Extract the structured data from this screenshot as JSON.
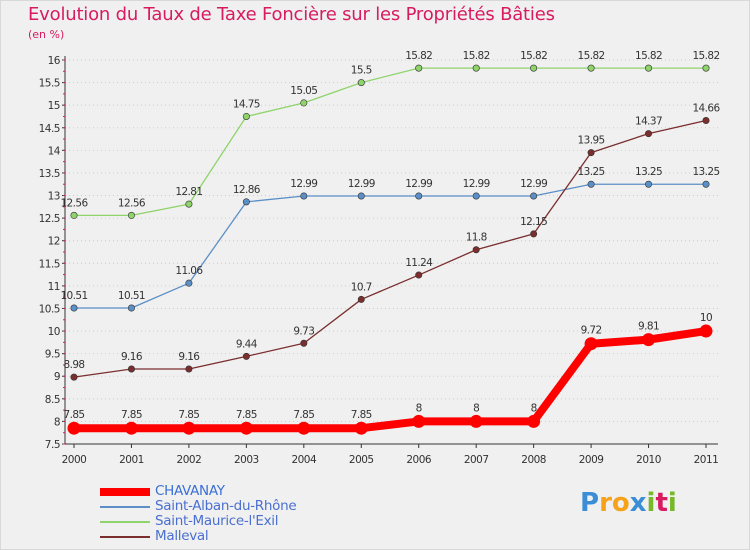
{
  "title": "Evolution du Taux de Taxe Foncière sur les Propriétés Bâties",
  "unit_label": "(en %)",
  "logo": {
    "text": "Proxiti",
    "letters": [
      "P",
      "r",
      "o",
      "x",
      "i",
      "t",
      "i"
    ],
    "colors": [
      "#3b8ed6",
      "#f7a21b",
      "#f7a21b",
      "#3b8ed6",
      "#76b82a",
      "#d81b60",
      "#76b82a"
    ]
  },
  "colors": {
    "title": "#d81b60",
    "background": "#f0f0f0",
    "grid": "#e6c0c8",
    "axis": "#333333"
  },
  "chart_data": {
    "type": "line",
    "title": "Evolution du Taux de Taxe Foncière sur les Propriétés Bâties",
    "ylabel": "(en %)",
    "xlabel": "",
    "x": [
      "2000",
      "2001",
      "2002",
      "2003",
      "2004",
      "2005",
      "2006",
      "2007",
      "2008",
      "2009",
      "2010",
      "2011"
    ],
    "ylim": [
      7.5,
      16
    ],
    "yticks": [
      "7.5",
      "8",
      "8.5",
      "9",
      "9.5",
      "10",
      "10.5",
      "11",
      "11.5",
      "12",
      "12.5",
      "13",
      "13.5",
      "14",
      "14.5",
      "15",
      "15.5",
      "16"
    ],
    "grid": "horizontal dotted",
    "legend_position": "bottom-left",
    "series": [
      {
        "name": "CHAVANAY",
        "color": "#ff0000",
        "emphasis": true,
        "values": [
          7.85,
          7.85,
          7.85,
          7.85,
          7.85,
          7.85,
          8,
          8,
          8,
          9.72,
          9.81,
          10
        ],
        "labels": [
          "7.85",
          "7.85",
          "7.85",
          "7.85",
          "7.85",
          "7.85",
          "8",
          "8",
          "8",
          "9.72",
          "9.81",
          "10"
        ]
      },
      {
        "name": "Saint-Alban-du-Rhône",
        "color": "#5b8fc7",
        "values": [
          10.51,
          10.51,
          11.06,
          12.86,
          12.99,
          12.99,
          12.99,
          12.99,
          12.99,
          13.25,
          13.25,
          13.25
        ],
        "labels": [
          "10.51",
          "10.51",
          "11.06",
          "12.86",
          "12.99",
          "12.99",
          "12.99",
          "12.99",
          "12.99",
          "13.25",
          "13.25",
          "13.25"
        ]
      },
      {
        "name": "Saint-Maurice-l'Exil",
        "color": "#8fd36b",
        "values": [
          12.56,
          12.56,
          12.81,
          14.75,
          15.05,
          15.5,
          15.82,
          15.82,
          15.82,
          15.82,
          15.82,
          15.82
        ],
        "labels": [
          "12.56",
          "12.56",
          "12.81",
          "14.75",
          "15.05",
          "15.5",
          "15.82",
          "15.82",
          "15.82",
          "15.82",
          "15.82",
          "15.82"
        ]
      },
      {
        "name": "Malleval",
        "color": "#7a2e2e",
        "values": [
          8.98,
          9.16,
          9.16,
          9.44,
          9.73,
          10.7,
          11.24,
          11.8,
          12.15,
          13.95,
          14.37,
          14.66
        ],
        "labels": [
          "8.98",
          "9.16",
          "9.16",
          "9.44",
          "9.73",
          "10.7",
          "11.24",
          "11.8",
          "12.15",
          "13.95",
          "14.37",
          "14.66"
        ]
      }
    ]
  }
}
